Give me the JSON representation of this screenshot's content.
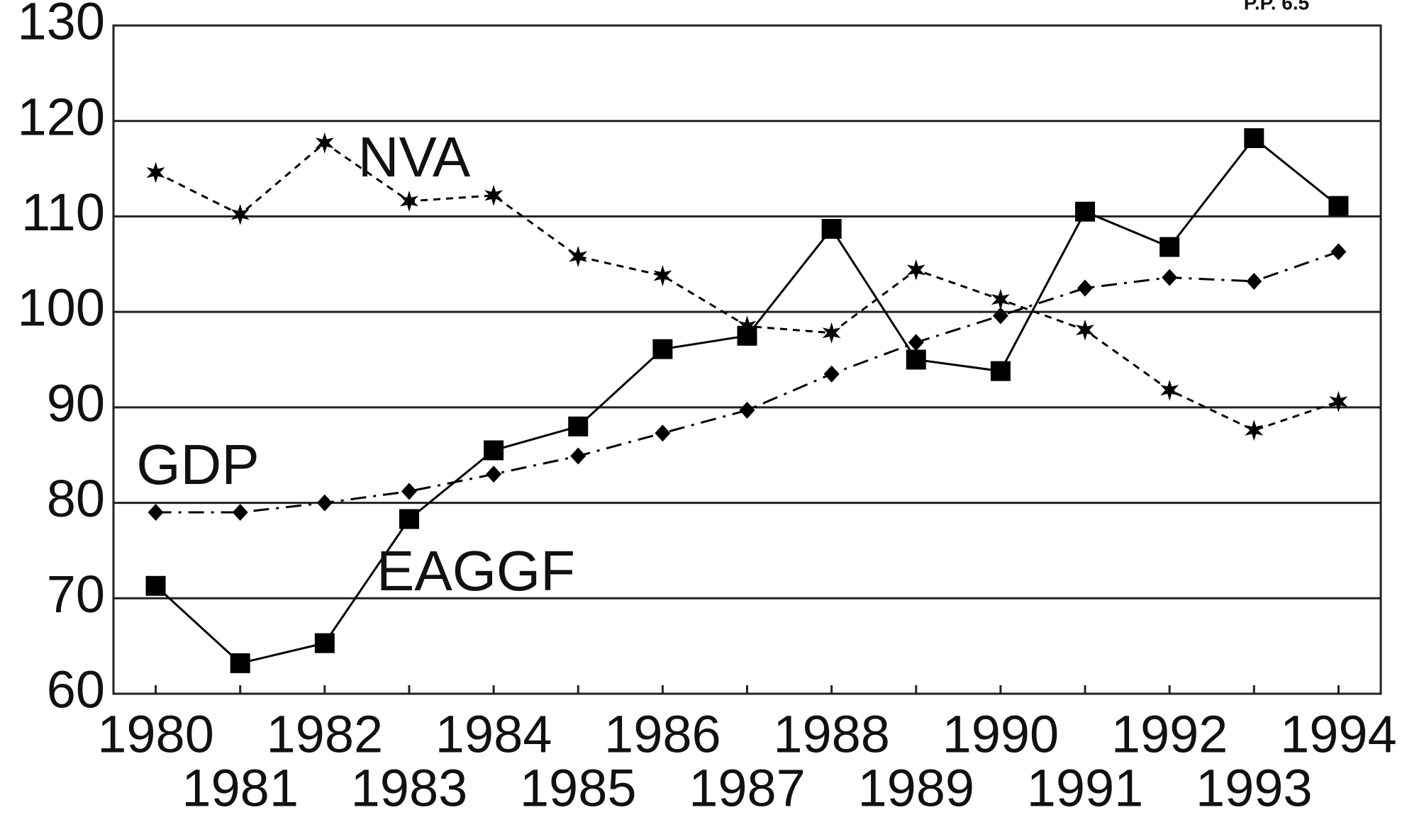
{
  "chart_data": {
    "type": "line",
    "annotations": [
      "P.P. 6.5"
    ],
    "categories": [
      1980,
      1981,
      1982,
      1983,
      1984,
      1985,
      1986,
      1987,
      1988,
      1989,
      1990,
      1991,
      1992,
      1993,
      1994
    ],
    "series": [
      {
        "name": "EAGGF",
        "color": "#000000",
        "marker": "square",
        "line_style": "solid",
        "values": [
          71.3,
          63.2,
          65.3,
          78.3,
          85.5,
          88,
          96.1,
          97.5,
          108.7,
          95,
          93.8,
          110.5,
          106.8,
          118.2,
          111.1
        ]
      },
      {
        "name": "NVA",
        "color": "#000000",
        "marker": "star",
        "line_style": "dashed",
        "values": [
          114.6,
          110.2,
          117.7,
          111.6,
          112.2,
          105.8,
          103.8,
          98.5,
          97.8,
          104.4,
          101.3,
          98.1,
          91.8,
          87.6,
          90.6
        ]
      },
      {
        "name": "GDP",
        "color": "#000000",
        "marker": "diamond",
        "line_style": "dashdot",
        "values": [
          79,
          79,
          80,
          81.2,
          83,
          84.9,
          87.3,
          89.7,
          93.5,
          96.8,
          99.6,
          102.5,
          103.6,
          103.2,
          106.3
        ]
      }
    ],
    "ylim": [
      60,
      130
    ],
    "yticks": [
      60,
      70,
      80,
      90,
      100,
      110,
      120,
      130
    ],
    "grid": true
  }
}
